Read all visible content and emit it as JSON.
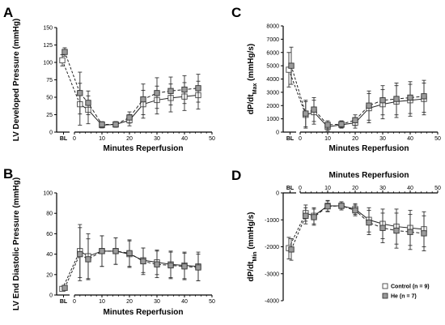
{
  "chart_data": [
    {
      "panel": "A",
      "type": "line",
      "ylabel": "LV Developed Pressure (mmHg)",
      "xlabel": "Minutes Reperfusion",
      "ylim": [
        0,
        150
      ],
      "yticks": [
        "0",
        "25",
        "50",
        "75",
        "100",
        "125",
        "150"
      ],
      "xlim": [
        0,
        50
      ],
      "xticks": [
        "BL",
        "0",
        "10",
        "20",
        "30",
        "40",
        "50"
      ],
      "baseline_label": "BL",
      "series": [
        {
          "name": "Control (n = 9)",
          "marker": "open-square",
          "baseline": {
            "y": 103,
            "err": 8
          },
          "x": [
            2,
            5,
            10,
            15,
            20,
            25,
            30,
            35,
            40,
            45
          ],
          "y": [
            40,
            32,
            10,
            11,
            17,
            40,
            46,
            49,
            51,
            53
          ],
          "err": [
            30,
            20,
            4,
            4,
            8,
            20,
            20,
            20,
            20,
            20
          ]
        },
        {
          "name": "He (n = 7)",
          "marker": "filled-square",
          "baseline": {
            "y": 115,
            "err": 6
          },
          "x": [
            2,
            5,
            10,
            15,
            20,
            25,
            30,
            35,
            40,
            45
          ],
          "y": [
            56,
            42,
            11,
            11,
            21,
            47,
            56,
            59,
            61,
            63
          ],
          "err": [
            30,
            17,
            4,
            4,
            8,
            22,
            22,
            20,
            20,
            20
          ]
        }
      ]
    },
    {
      "panel": "B",
      "type": "line",
      "ylabel": "LV End Diastolic Pressure (mmHg)",
      "xlabel": "Minutes Reperfusion",
      "ylim": [
        0,
        100
      ],
      "yticks": [
        "0",
        "20",
        "40",
        "60",
        "80",
        "100"
      ],
      "xlim": [
        0,
        50
      ],
      "xticks": [
        "BL",
        "0",
        "10",
        "20",
        "30",
        "40",
        "50"
      ],
      "baseline_label": "BL",
      "series": [
        {
          "name": "Control (n = 9)",
          "marker": "open-square",
          "baseline": {
            "y": 6,
            "err": 2
          },
          "x": [
            2,
            5,
            10,
            15,
            20,
            25,
            30,
            35,
            40,
            45
          ],
          "y": [
            43,
            38,
            43,
            43,
            40,
            34,
            32,
            30,
            29,
            28
          ],
          "err": [
            26,
            22,
            15,
            13,
            13,
            12,
            12,
            13,
            13,
            14
          ]
        },
        {
          "name": "He (n = 7)",
          "marker": "filled-square",
          "baseline": {
            "y": 7,
            "err": 2
          },
          "x": [
            2,
            5,
            10,
            15,
            20,
            25,
            30,
            35,
            40,
            45
          ],
          "y": [
            40,
            35,
            43,
            43,
            41,
            33,
            30,
            29,
            28,
            27
          ],
          "err": [
            26,
            20,
            15,
            13,
            13,
            13,
            13,
            13,
            13,
            13
          ]
        }
      ]
    },
    {
      "panel": "C",
      "type": "line",
      "ylabel": "dP/dt",
      "ylabel_sub": "Max",
      "ylabel_suffix": " (mmHg/s)",
      "xlabel": "Minutes Reperfusion",
      "ylim": [
        0,
        8000
      ],
      "yticks": [
        "0",
        "1000",
        "2000",
        "3000",
        "4000",
        "5000",
        "6000",
        "7000",
        "8000"
      ],
      "xlim": [
        0,
        50
      ],
      "xticks": [
        "BL",
        "0",
        "10",
        "20",
        "30",
        "40",
        "50"
      ],
      "baseline_label": "BL",
      "series": [
        {
          "name": "Control (n = 9)",
          "marker": "open-square",
          "baseline": {
            "y": 4700,
            "err": 1300
          },
          "x": [
            2,
            5,
            10,
            15,
            20,
            25,
            30,
            35,
            40,
            45
          ],
          "y": [
            1300,
            1500,
            400,
            550,
            700,
            1800,
            2100,
            2300,
            2400,
            2500
          ],
          "err": [
            1000,
            900,
            300,
            250,
            400,
            1100,
            1100,
            1200,
            1200,
            1200
          ]
        },
        {
          "name": "He (n = 7)",
          "marker": "filled-square",
          "baseline": {
            "y": 5000,
            "err": 1400
          },
          "x": [
            2,
            5,
            10,
            15,
            20,
            25,
            30,
            35,
            40,
            45
          ],
          "y": [
            1400,
            1700,
            550,
            600,
            900,
            2000,
            2400,
            2500,
            2600,
            2700
          ],
          "err": [
            1000,
            900,
            300,
            250,
            400,
            1100,
            1100,
            1200,
            1200,
            1200
          ]
        }
      ]
    },
    {
      "panel": "D",
      "type": "line",
      "ylabel": "dP/dt",
      "ylabel_sub": "Min",
      "ylabel_suffix": " (mmHg/s)",
      "xlabel": "Minutes Reperfusion",
      "xaxis_position": "top",
      "ylim": [
        -4000,
        0
      ],
      "yticks": [
        "-4000",
        "-3000",
        "-2000",
        "-1000",
        "0"
      ],
      "xlim": [
        0,
        50
      ],
      "xticks": [
        "BL",
        "0",
        "10",
        "20",
        "30",
        "40",
        "50"
      ],
      "baseline_label": "BL",
      "legend": "bottom-right",
      "series": [
        {
          "name": "Control (n = 9)",
          "marker": "open-square",
          "baseline": {
            "y": -2050,
            "err": 400
          },
          "x": [
            2,
            5,
            10,
            15,
            20,
            25,
            30,
            35,
            40,
            45
          ],
          "y": [
            -750,
            -850,
            -480,
            -480,
            -600,
            -1000,
            -1150,
            -1250,
            -1300,
            -1350
          ],
          "err": [
            300,
            300,
            200,
            150,
            200,
            450,
            550,
            650,
            650,
            650
          ]
        },
        {
          "name": "He (n = 7)",
          "marker": "filled-square",
          "baseline": {
            "y": -2100,
            "err": 400
          },
          "x": [
            2,
            5,
            10,
            15,
            20,
            25,
            30,
            35,
            40,
            45
          ],
          "y": [
            -850,
            -900,
            -500,
            -480,
            -650,
            -1100,
            -1300,
            -1400,
            -1450,
            -1500
          ],
          "err": [
            300,
            300,
            200,
            150,
            200,
            450,
            550,
            650,
            650,
            650
          ]
        }
      ]
    }
  ]
}
